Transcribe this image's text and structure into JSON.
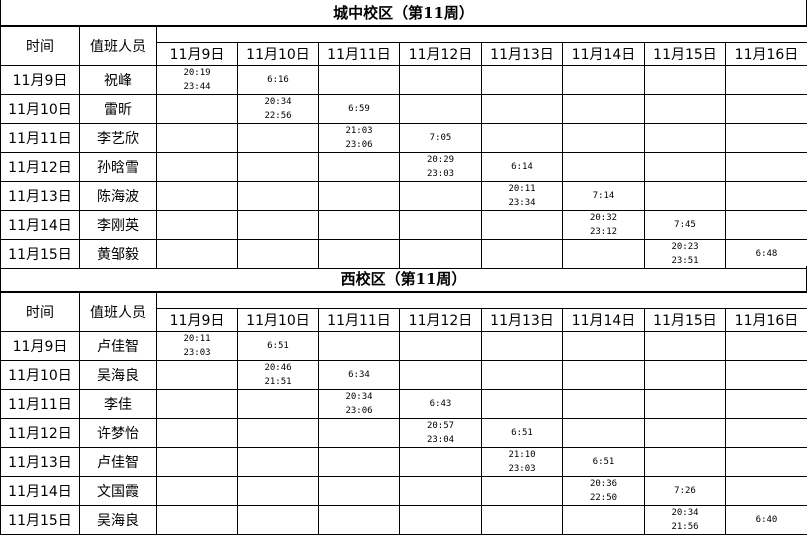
{
  "headers": {
    "time": "时间",
    "person": "值班人员"
  },
  "day_columns": [
    "11月9日",
    "11月10日",
    "11月11日",
    "11月12日",
    "11月13日",
    "11月14日",
    "11月15日",
    "11月16日"
  ],
  "sections": [
    {
      "title": "城中校区（第11周）",
      "rows": [
        {
          "date": "11月9日",
          "person": "祝峰",
          "cells": [
            [
              "20:19",
              "23:44"
            ],
            [
              "6:16"
            ],
            [],
            [],
            [],
            [],
            [],
            []
          ]
        },
        {
          "date": "11月10日",
          "person": "雷昕",
          "cells": [
            [],
            [
              "20:34",
              "22:56"
            ],
            [
              "6:59"
            ],
            [],
            [],
            [],
            [],
            []
          ]
        },
        {
          "date": "11月11日",
          "person": "李艺欣",
          "cells": [
            [],
            [],
            [
              "21:03",
              "23:06"
            ],
            [
              "7:05"
            ],
            [],
            [],
            [],
            []
          ]
        },
        {
          "date": "11月12日",
          "person": "孙晗雪",
          "cells": [
            [],
            [],
            [],
            [
              "20:29",
              "23:03"
            ],
            [
              "6:14"
            ],
            [],
            [],
            []
          ]
        },
        {
          "date": "11月13日",
          "person": "陈海波",
          "cells": [
            [],
            [],
            [],
            [],
            [
              "20:11",
              "23:34"
            ],
            [
              "7:14"
            ],
            [],
            []
          ]
        },
        {
          "date": "11月14日",
          "person": "李刚英",
          "cells": [
            [],
            [],
            [],
            [],
            [],
            [
              "20:32",
              "23:12"
            ],
            [
              "7:45"
            ],
            []
          ]
        },
        {
          "date": "11月15日",
          "person": "黄邹毅",
          "cells": [
            [],
            [],
            [],
            [],
            [],
            [],
            [
              "20:23",
              "23:51"
            ],
            [
              "6:48"
            ]
          ]
        }
      ]
    },
    {
      "title": "西校区（第11周）",
      "rows": [
        {
          "date": "11月9日",
          "person": "卢佳智",
          "cells": [
            [
              "20:11",
              "23:03"
            ],
            [
              "6:51"
            ],
            [],
            [],
            [],
            [],
            [],
            []
          ]
        },
        {
          "date": "11月10日",
          "person": "吴海良",
          "cells": [
            [],
            [
              "20:46",
              "21:51"
            ],
            [
              "6:34"
            ],
            [],
            [],
            [],
            [],
            []
          ]
        },
        {
          "date": "11月11日",
          "person": "李佳",
          "cells": [
            [],
            [],
            [
              "20:34",
              "23:06"
            ],
            [
              "6:43"
            ],
            [],
            [],
            [],
            []
          ]
        },
        {
          "date": "11月12日",
          "person": "许梦怡",
          "cells": [
            [],
            [],
            [],
            [
              "20:57",
              "23:04"
            ],
            [
              "6:51"
            ],
            [],
            [],
            []
          ]
        },
        {
          "date": "11月13日",
          "person": "卢佳智",
          "cells": [
            [],
            [],
            [],
            [],
            [
              "21:10",
              "23:03"
            ],
            [
              "6:51"
            ],
            [],
            []
          ]
        },
        {
          "date": "11月14日",
          "person": "文国霞",
          "cells": [
            [],
            [],
            [],
            [],
            [],
            [
              "20:36",
              "22:50"
            ],
            [
              "7:26"
            ],
            []
          ]
        },
        {
          "date": "11月15日",
          "person": "吴海良",
          "cells": [
            [],
            [],
            [],
            [],
            [],
            [],
            [
              "20:34",
              "21:56"
            ],
            [
              "6:40"
            ]
          ]
        }
      ]
    }
  ]
}
